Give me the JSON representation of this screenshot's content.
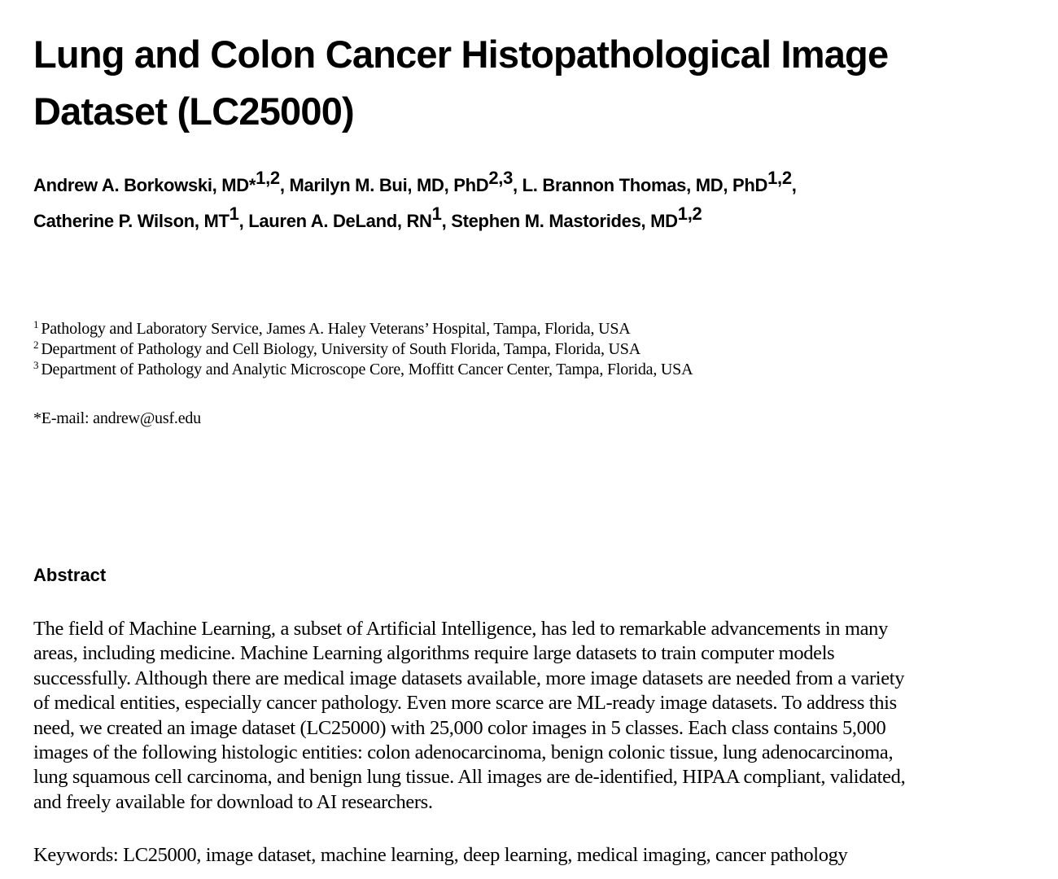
{
  "title": {
    "line1": "Lung and Colon Cancer Histopathological Image",
    "line2": "Dataset (LC25000)"
  },
  "authors": [
    {
      "name": "Andrew A. Borkowski, MD*",
      "sup": "1,2",
      "sep": ", "
    },
    {
      "name": "Marilyn M. Bui, MD, PhD",
      "sup": "2,3",
      "sep": ", "
    },
    {
      "name": "L. Brannon Thomas, MD, PhD",
      "sup": "1,2",
      "sep": ","
    },
    {
      "name": "Catherine P. Wilson, MT",
      "sup": "1",
      "sep": ", "
    },
    {
      "name": "Lauren A. DeLand, RN",
      "sup": "1",
      "sep": ", "
    },
    {
      "name": "Stephen M. Mastorides, MD",
      "sup": "1,2",
      "sep": ""
    }
  ],
  "affiliations": [
    {
      "num": "1",
      "text": "Pathology and Laboratory Service, James A. Haley Veterans’ Hospital, Tampa, Florida, USA"
    },
    {
      "num": "2",
      "text": "Department of Pathology and Cell Biology, University of South Florida, Tampa, Florida, USA"
    },
    {
      "num": "3",
      "text": "Department of Pathology and Analytic Microscope Core, Moffitt Cancer Center, Tampa, Florida, USA"
    }
  ],
  "email": "*E-mail: andrew@usf.edu",
  "abstract": {
    "heading": "Abstract",
    "lines": [
      "The field of Machine Learning, a subset of Artificial Intelligence, has led to remarkable advancements in many",
      "areas, including medicine. Machine Learning algorithms require large datasets to train computer models",
      "successfully. Although there are medical image datasets available, more image datasets are needed from a variety",
      "of medical entities, especially cancer pathology. Even more scarce are ML-ready image datasets. To address this",
      "need, we created an image dataset (LC25000) with 25,000 color images in 5 classes. Each class contains 5,000",
      "images of the following histologic entities: colon adenocarcinoma, benign colonic tissue, lung adenocarcinoma,",
      "lung squamous cell carcinoma, and benign lung tissue. All images are de-identified, HIPAA compliant, validated,",
      "and freely available for download to AI researchers."
    ]
  },
  "keywords": "Keywords: LC25000, image dataset, machine learning, deep learning, medical imaging, cancer pathology"
}
